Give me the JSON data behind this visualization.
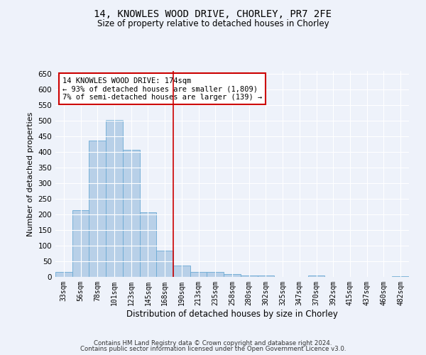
{
  "title": "14, KNOWLES WOOD DRIVE, CHORLEY, PR7 2FE",
  "subtitle": "Size of property relative to detached houses in Chorley",
  "xlabel": "Distribution of detached houses by size in Chorley",
  "ylabel": "Number of detached properties",
  "categories": [
    "33sqm",
    "56sqm",
    "78sqm",
    "101sqm",
    "123sqm",
    "145sqm",
    "168sqm",
    "190sqm",
    "213sqm",
    "235sqm",
    "258sqm",
    "280sqm",
    "302sqm",
    "325sqm",
    "347sqm",
    "370sqm",
    "392sqm",
    "415sqm",
    "437sqm",
    "460sqm",
    "482sqm"
  ],
  "values": [
    15,
    213,
    437,
    502,
    407,
    207,
    85,
    37,
    17,
    15,
    10,
    5,
    4,
    1,
    1,
    4,
    0,
    0,
    0,
    0,
    3
  ],
  "bar_color": "#b8d0e8",
  "bar_edge_color": "#6aaad4",
  "vline_x": 6.5,
  "vline_color": "#cc0000",
  "annotation_text": "14 KNOWLES WOOD DRIVE: 174sqm\n← 93% of detached houses are smaller (1,809)\n7% of semi-detached houses are larger (139) →",
  "annotation_box_color": "#cc0000",
  "ylim": [
    0,
    660
  ],
  "yticks": [
    0,
    50,
    100,
    150,
    200,
    250,
    300,
    350,
    400,
    450,
    500,
    550,
    600,
    650
  ],
  "background_color": "#eef2fa",
  "grid_color": "#ffffff",
  "footer_line1": "Contains HM Land Registry data © Crown copyright and database right 2024.",
  "footer_line2": "Contains public sector information licensed under the Open Government Licence v3.0."
}
